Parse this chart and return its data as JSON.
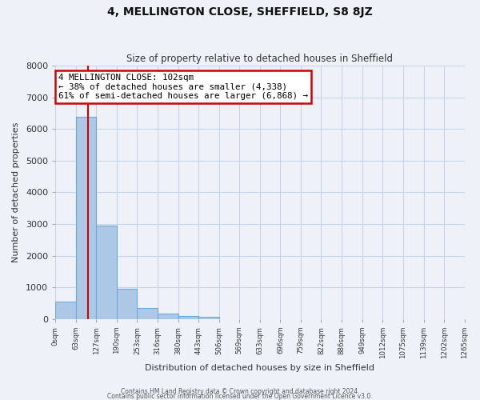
{
  "title": "4, MELLINGTON CLOSE, SHEFFIELD, S8 8JZ",
  "subtitle": "Size of property relative to detached houses in Sheffield",
  "xlabel": "Distribution of detached houses by size in Sheffield",
  "ylabel": "Number of detached properties",
  "bar_values": [
    550,
    6380,
    2950,
    950,
    350,
    175,
    100,
    55
  ],
  "bar_edges": [
    0,
    63,
    127,
    190,
    253,
    316,
    380,
    443,
    506
  ],
  "xlim_max": 1265,
  "ylim": [
    0,
    8000
  ],
  "xtick_labels": [
    "0sqm",
    "63sqm",
    "127sqm",
    "190sqm",
    "253sqm",
    "316sqm",
    "380sqm",
    "443sqm",
    "506sqm",
    "569sqm",
    "633sqm",
    "696sqm",
    "759sqm",
    "822sqm",
    "886sqm",
    "949sqm",
    "1012sqm",
    "1075sqm",
    "1139sqm",
    "1202sqm",
    "1265sqm"
  ],
  "xtick_positions": [
    0,
    63,
    127,
    190,
    253,
    316,
    380,
    443,
    506,
    569,
    633,
    696,
    759,
    822,
    886,
    949,
    1012,
    1075,
    1139,
    1202,
    1265
  ],
  "bar_color": "#adc8e6",
  "bar_edge_color": "#6aaad4",
  "red_line_x": 102,
  "annotation_title": "4 MELLINGTON CLOSE: 102sqm",
  "annotation_line1": "← 38% of detached houses are smaller (4,338)",
  "annotation_line2": "61% of semi-detached houses are larger (6,868) →",
  "annotation_box_color": "#ffffff",
  "annotation_box_edge": "#cc0000",
  "red_line_color": "#cc0000",
  "grid_color": "#c8d4e8",
  "background_color": "#eef2f8",
  "footer_line1": "Contains HM Land Registry data © Crown copyright and database right 2024.",
  "footer_line2": "Contains public sector information licensed under the Open Government Licence v3.0.",
  "ytick_values": [
    0,
    1000,
    2000,
    3000,
    4000,
    5000,
    6000,
    7000,
    8000
  ]
}
